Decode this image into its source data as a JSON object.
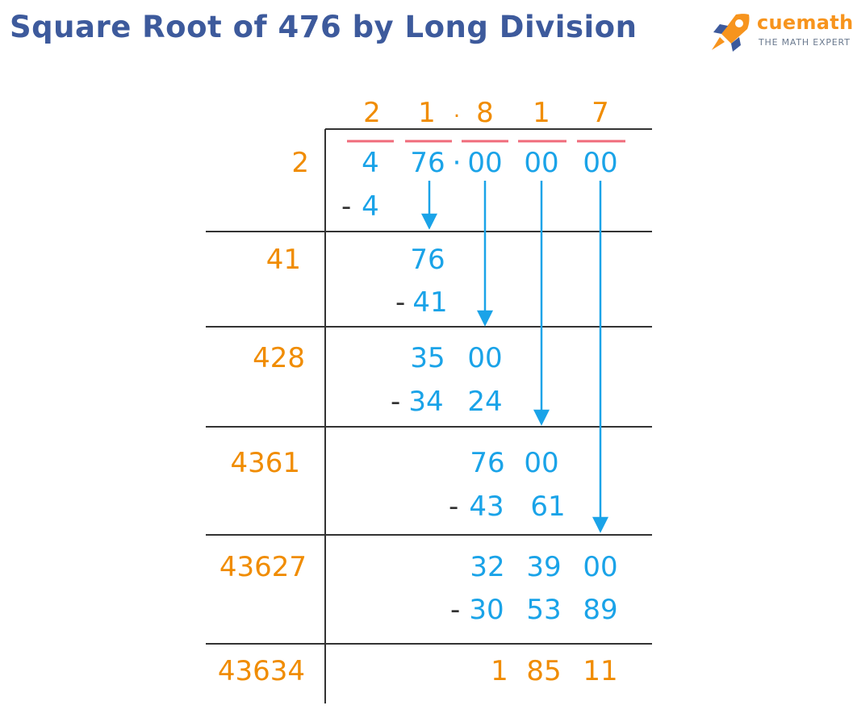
{
  "title": "Square Root of 476 by Long Division",
  "logo": {
    "brand": "cuemath",
    "tagline": "THE MATH EXPERT",
    "icon": "rocket-icon"
  },
  "colors": {
    "title": "#3d5a9c",
    "quotient": "#f08c00",
    "working": "#1aa3e8",
    "pair_bar": "#f06b7a",
    "rule": "#333333"
  },
  "quotient": {
    "digits": [
      "2",
      "1",
      "8",
      "1",
      "7"
    ],
    "point": "."
  },
  "dividend": {
    "groups": [
      "4",
      "76",
      "00",
      "00",
      "00"
    ],
    "point": "·"
  },
  "divisors": [
    "2",
    "41",
    "428",
    "4361",
    "43627",
    "43634"
  ],
  "steps": {
    "s1": {
      "minus": "-",
      "sub": "4"
    },
    "s2": {
      "rem": "76",
      "minus": "-",
      "sub": "41"
    },
    "s3": {
      "rem_a": "35",
      "rem_b": "00",
      "minus": "-",
      "sub_a": "34",
      "sub_b": "24"
    },
    "s4": {
      "rem_a": "76",
      "rem_b": "00",
      "minus": "-",
      "sub_a": "43",
      "sub_b": "61"
    },
    "s5": {
      "rem_a": "32",
      "rem_b": "39",
      "rem_c": "00",
      "minus": "-",
      "sub_a": "30",
      "sub_b": "53",
      "sub_c": "89"
    },
    "final": {
      "a": "1",
      "b": "85",
      "c": "11"
    }
  }
}
